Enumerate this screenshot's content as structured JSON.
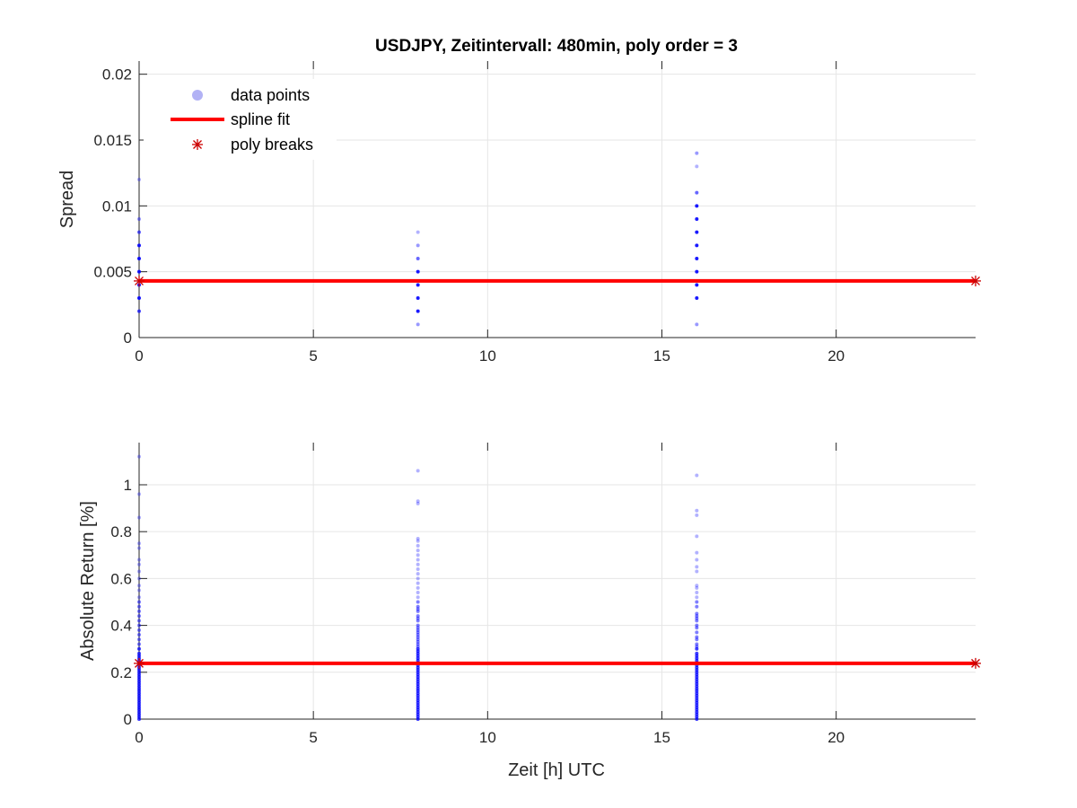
{
  "figure": {
    "title": "USDJPY, Zeitintervall: 480min, poly order = 3"
  },
  "legend": {
    "entries": [
      {
        "label": "data points",
        "marker": "dot",
        "color": "#b2b2f5"
      },
      {
        "label": "spline fit",
        "marker": "line",
        "color": "#ff0000"
      },
      {
        "label": "poly breaks",
        "marker": "asterisk",
        "color": "#cc0000"
      }
    ]
  },
  "colors": {
    "points": "#0000ff",
    "fit": "#ff0000",
    "breaks": "#cc0000",
    "grid": "#e6e6e6",
    "axis": "#262626"
  },
  "chart_data": [
    {
      "type": "scatter",
      "xlabel": "",
      "ylabel": "Spread",
      "xlim": [
        0,
        24
      ],
      "ylim": [
        0,
        0.021
      ],
      "xticks": [
        0,
        5,
        10,
        15,
        20
      ],
      "xtick_labels": [
        "0",
        "5",
        "10",
        "15",
        "20"
      ],
      "yticks": [
        0,
        0.005,
        0.01,
        0.015,
        0.02
      ],
      "ytick_labels": [
        "0",
        "0.005",
        "0.01",
        "0.015",
        "0.02"
      ],
      "grid": true,
      "legend_position": "top-left",
      "series": [
        {
          "name": "data points",
          "points": [
            {
              "x": 0,
              "y": 0.012,
              "a": 0.3
            },
            {
              "x": 0,
              "y": 0.009,
              "a": 0.4
            },
            {
              "x": 0,
              "y": 0.008,
              "a": 0.6
            },
            {
              "x": 0,
              "y": 0.007,
              "a": 0.9
            },
            {
              "x": 0,
              "y": 0.006,
              "a": 0.9
            },
            {
              "x": 0,
              "y": 0.005,
              "a": 0.9
            },
            {
              "x": 0,
              "y": 0.004,
              "a": 0.9
            },
            {
              "x": 0,
              "y": 0.003,
              "a": 0.9
            },
            {
              "x": 0,
              "y": 0.002,
              "a": 0.7
            },
            {
              "x": 8,
              "y": 0.008,
              "a": 0.3
            },
            {
              "x": 8,
              "y": 0.007,
              "a": 0.4
            },
            {
              "x": 8,
              "y": 0.006,
              "a": 0.6
            },
            {
              "x": 8,
              "y": 0.005,
              "a": 0.9
            },
            {
              "x": 8,
              "y": 0.004,
              "a": 0.9
            },
            {
              "x": 8,
              "y": 0.003,
              "a": 0.9
            },
            {
              "x": 8,
              "y": 0.002,
              "a": 0.9
            },
            {
              "x": 8,
              "y": 0.001,
              "a": 0.4
            },
            {
              "x": 16,
              "y": 0.014,
              "a": 0.4
            },
            {
              "x": 16,
              "y": 0.013,
              "a": 0.3
            },
            {
              "x": 16,
              "y": 0.011,
              "a": 0.6
            },
            {
              "x": 16,
              "y": 0.01,
              "a": 0.9
            },
            {
              "x": 16,
              "y": 0.009,
              "a": 0.9
            },
            {
              "x": 16,
              "y": 0.008,
              "a": 0.9
            },
            {
              "x": 16,
              "y": 0.007,
              "a": 0.9
            },
            {
              "x": 16,
              "y": 0.006,
              "a": 0.9
            },
            {
              "x": 16,
              "y": 0.005,
              "a": 0.9
            },
            {
              "x": 16,
              "y": 0.004,
              "a": 0.9
            },
            {
              "x": 16,
              "y": 0.003,
              "a": 0.9
            },
            {
              "x": 16,
              "y": 0.001,
              "a": 0.4
            }
          ]
        },
        {
          "name": "spline fit",
          "x": [
            0,
            24
          ],
          "y": [
            0.0043,
            0.0043
          ]
        },
        {
          "name": "poly breaks",
          "x": [
            0,
            24
          ],
          "y": [
            0.0043,
            0.0043
          ]
        }
      ]
    },
    {
      "type": "scatter",
      "xlabel": "Zeit [h] UTC",
      "ylabel": "Absolute Return [%]",
      "xlim": [
        0,
        24
      ],
      "ylim": [
        0,
        1.18
      ],
      "xticks": [
        0,
        5,
        10,
        15,
        20
      ],
      "xtick_labels": [
        "0",
        "5",
        "10",
        "15",
        "20"
      ],
      "yticks": [
        0,
        0.2,
        0.4,
        0.6,
        0.8,
        1
      ],
      "ytick_labels": [
        "0",
        "0.2",
        "0.4",
        "0.6",
        "0.8",
        "1"
      ],
      "grid": true,
      "series": [
        {
          "name": "data points",
          "columns": [
            {
              "x": 0,
              "values": [
                1.12,
                0.96,
                0.86,
                0.75,
                0.73,
                0.68,
                0.66,
                0.63,
                0.6,
                0.57,
                0.55,
                0.52,
                0.5,
                0.48,
                0.46,
                0.44,
                0.42,
                0.4,
                0.38,
                0.36,
                0.34,
                0.32,
                0.3,
                0.28,
                0.27,
                0.26,
                0.25,
                0.24,
                0.23,
                0.22,
                0.21,
                0.2,
                0.19,
                0.18,
                0.17,
                0.16,
                0.15,
                0.14,
                0.13,
                0.12,
                0.11,
                0.1,
                0.09,
                0.08,
                0.07,
                0.06,
                0.05,
                0.04,
                0.03,
                0.02,
                0.01,
                0.0
              ]
            },
            {
              "x": 8,
              "values": [
                1.06,
                0.93,
                0.92,
                0.77,
                0.76,
                0.74,
                0.72,
                0.7,
                0.68,
                0.66,
                0.64,
                0.62,
                0.6,
                0.58,
                0.56,
                0.54,
                0.52,
                0.5,
                0.48,
                0.47,
                0.46,
                0.44,
                0.43,
                0.42,
                0.4,
                0.39,
                0.38,
                0.37,
                0.36,
                0.35,
                0.34,
                0.33,
                0.32,
                0.31,
                0.3,
                0.29,
                0.28,
                0.27,
                0.26,
                0.25,
                0.24,
                0.23,
                0.22,
                0.21,
                0.2,
                0.19,
                0.18,
                0.17,
                0.16,
                0.15,
                0.14,
                0.13,
                0.12,
                0.11,
                0.1,
                0.09,
                0.08,
                0.07,
                0.06,
                0.05,
                0.04,
                0.03,
                0.02,
                0.01,
                0.0
              ]
            },
            {
              "x": 16,
              "values": [
                1.04,
                0.89,
                0.87,
                0.78,
                0.71,
                0.68,
                0.65,
                0.63,
                0.57,
                0.56,
                0.54,
                0.52,
                0.5,
                0.48,
                0.45,
                0.44,
                0.43,
                0.42,
                0.4,
                0.39,
                0.37,
                0.35,
                0.34,
                0.32,
                0.31,
                0.3,
                0.28,
                0.27,
                0.26,
                0.25,
                0.24,
                0.23,
                0.22,
                0.21,
                0.2,
                0.19,
                0.18,
                0.17,
                0.16,
                0.15,
                0.14,
                0.13,
                0.12,
                0.11,
                0.1,
                0.09,
                0.08,
                0.07,
                0.06,
                0.05,
                0.04,
                0.03,
                0.02,
                0.01,
                0.0
              ]
            }
          ]
        },
        {
          "name": "spline fit",
          "x": [
            0,
            24
          ],
          "y": [
            0.238,
            0.238
          ]
        },
        {
          "name": "poly breaks",
          "x": [
            0,
            24
          ],
          "y": [
            0.238,
            0.238
          ]
        }
      ]
    }
  ]
}
